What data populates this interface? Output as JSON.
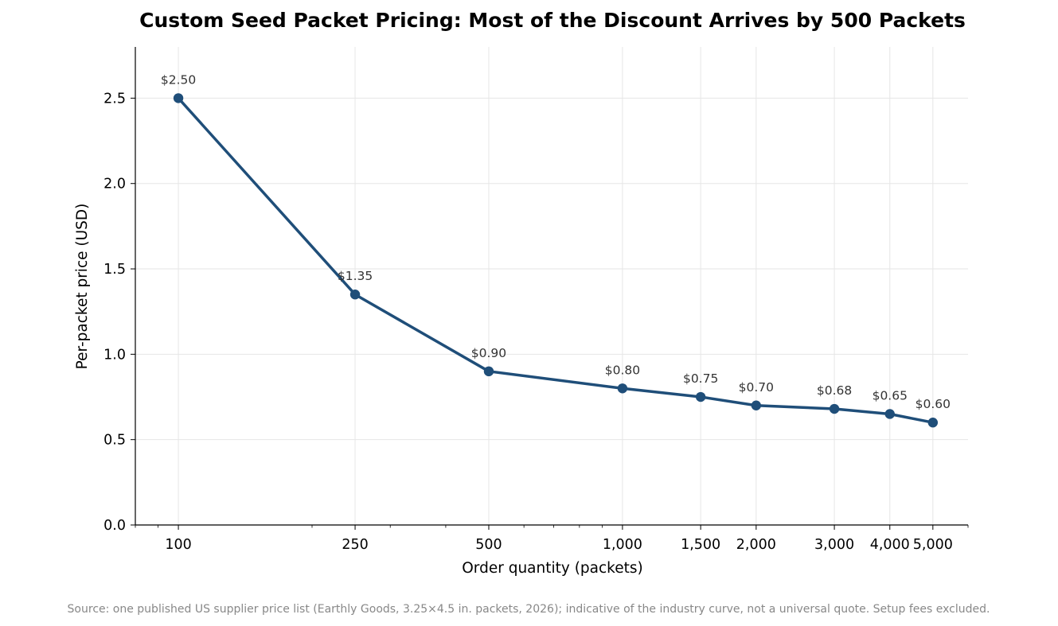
{
  "chart_data": {
    "type": "line",
    "title": "Custom Seed Packet Pricing: Most of the Discount Arrives by 500 Packets",
    "xlabel": "Order quantity (packets)",
    "ylabel": "Per-packet price (USD)",
    "x_scale": "log",
    "xlim": [
      80,
      6000
    ],
    "ylim": [
      0,
      2.8
    ],
    "grid": true,
    "x_ticks": [
      {
        "value": 100,
        "label": "100"
      },
      {
        "value": 250,
        "label": "250"
      },
      {
        "value": 500,
        "label": "500"
      },
      {
        "value": 1000,
        "label": "1,000"
      },
      {
        "value": 1500,
        "label": "1,500"
      },
      {
        "value": 2000,
        "label": "2,000"
      },
      {
        "value": 3000,
        "label": "3,000"
      },
      {
        "value": 4000,
        "label": "4,000"
      },
      {
        "value": 5000,
        "label": "5,000"
      }
    ],
    "y_ticks": [
      {
        "value": 0,
        "label": "0.0"
      },
      {
        "value": 0.5,
        "label": "0.5"
      },
      {
        "value": 1.0,
        "label": "1.0"
      },
      {
        "value": 1.5,
        "label": "1.5"
      },
      {
        "value": 2.0,
        "label": "2.0"
      },
      {
        "value": 2.5,
        "label": "2.5"
      }
    ],
    "series": [
      {
        "color": "#1f4e79",
        "points": [
          {
            "x": 100,
            "y": 2.5,
            "label": "$2.50"
          },
          {
            "x": 250,
            "y": 1.35,
            "label": "$1.35"
          },
          {
            "x": 500,
            "y": 0.9,
            "label": "$0.90"
          },
          {
            "x": 1000,
            "y": 0.8,
            "label": "$0.80"
          },
          {
            "x": 1500,
            "y": 0.75,
            "label": "$0.75"
          },
          {
            "x": 2000,
            "y": 0.7,
            "label": "$0.70"
          },
          {
            "x": 3000,
            "y": 0.68,
            "label": "$0.68"
          },
          {
            "x": 4000,
            "y": 0.65,
            "label": "$0.65"
          },
          {
            "x": 5000,
            "y": 0.6,
            "label": "$0.60"
          }
        ]
      }
    ],
    "source_note": "Source: one published US supplier price list (Earthly Goods, 3.25×4.5 in. packets, 2026); indicative of the industry curve, not a universal quote. Setup fees excluded."
  }
}
